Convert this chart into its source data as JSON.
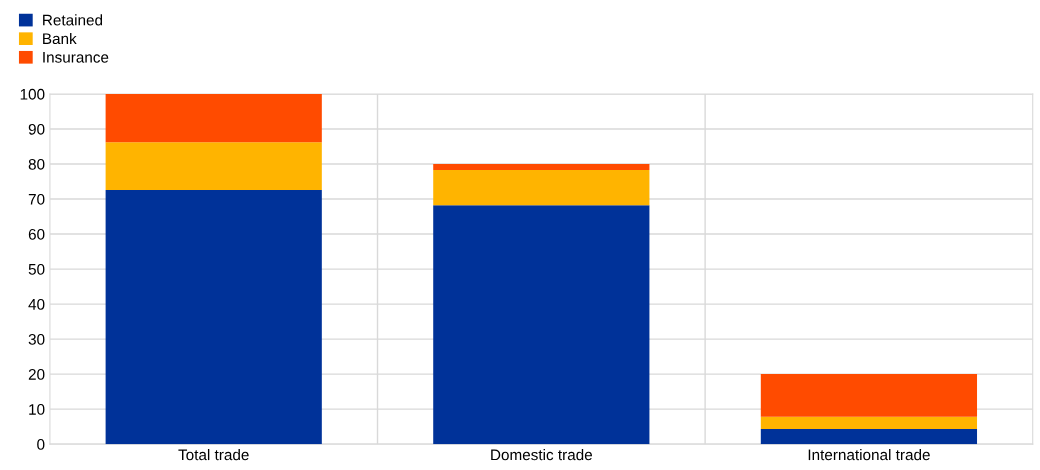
{
  "chart_data": {
    "type": "bar",
    "stacked": true,
    "categories": [
      "Total trade",
      "Domestic trade",
      "International trade"
    ],
    "series": [
      {
        "name": "Retained",
        "color": "#003299",
        "values": [
          72.6,
          68.2,
          4.3
        ]
      },
      {
        "name": "Bank",
        "color": "#ffb400",
        "values": [
          13.6,
          10.1,
          3.5
        ]
      },
      {
        "name": "Insurance",
        "color": "#ff4b00",
        "values": [
          13.8,
          1.7,
          12.2
        ]
      }
    ],
    "ylim": [
      0,
      100
    ],
    "yticks": [
      0,
      10,
      20,
      30,
      40,
      50,
      60,
      70,
      80,
      90,
      100
    ],
    "grid": true,
    "legend": "top left"
  }
}
